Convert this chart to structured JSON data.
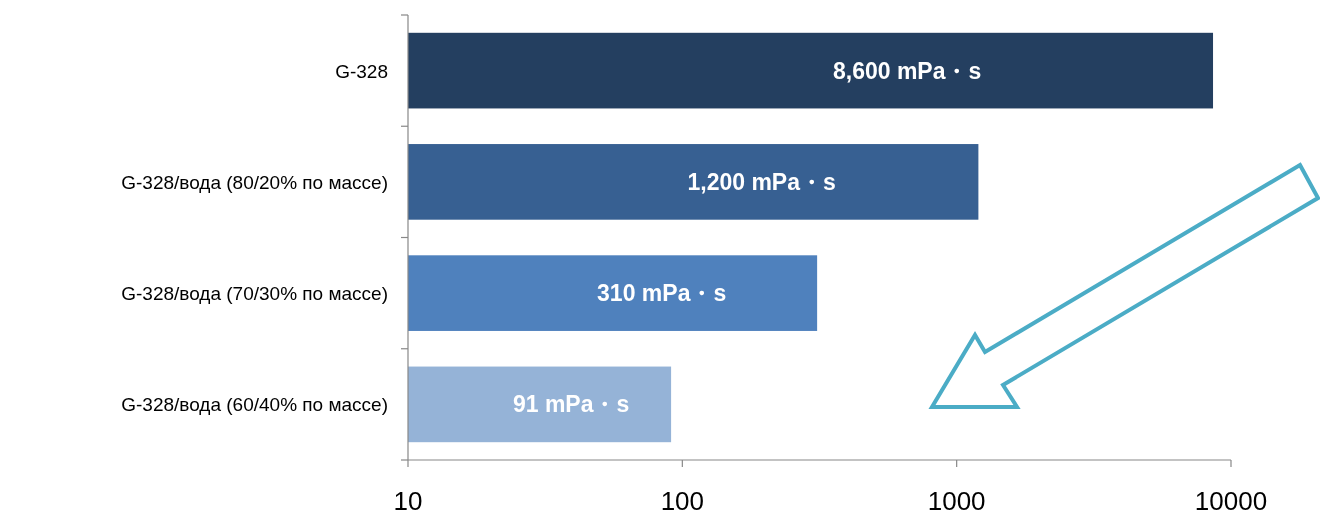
{
  "chart_data": {
    "type": "bar",
    "orientation": "horizontal",
    "log": "x",
    "categories": [
      "G-328",
      "G-328/вода (80/20% по массе)",
      "G-328/вода (70/30% по массе)",
      "G-328/вода (60/40% по массе)"
    ],
    "values": [
      8600,
      1200,
      310,
      91
    ],
    "colors": [
      "#243f60",
      "#376092",
      "#4f81bd",
      "#95b3d7"
    ],
    "value_labels": [
      "8,600 mPa・s",
      "1,200 mPa・s",
      "310 mPa・s",
      "91 mPa・s"
    ],
    "xlim": [
      10,
      10000
    ],
    "xticks": [
      10,
      100,
      1000,
      10000
    ]
  }
}
